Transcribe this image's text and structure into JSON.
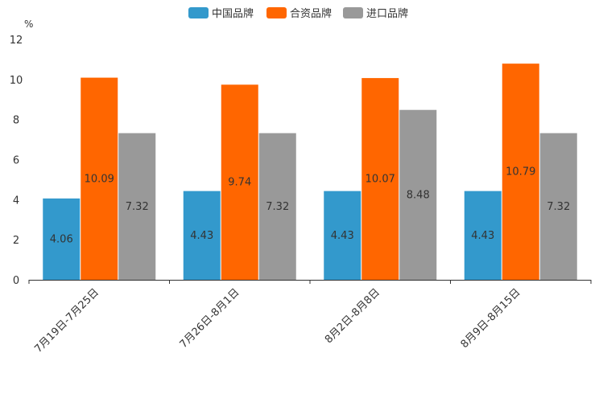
{
  "chart_data": {
    "type": "bar",
    "unit_label": "%",
    "categories": [
      "7月19日-7月25日",
      "7月26日-8月1日",
      "8月2日-8月8日",
      "8月9日-8月15日"
    ],
    "series": [
      {
        "name": "中国品牌",
        "color": "#3399cc",
        "values": [
          4.06,
          4.43,
          4.43,
          4.43
        ],
        "labels": [
          "4.06",
          "4.43",
          "4.43",
          "4.43"
        ]
      },
      {
        "name": "合资品牌",
        "color": "#ff6600",
        "values": [
          10.09,
          9.74,
          10.07,
          10.79
        ],
        "labels": [
          "10.09",
          "9.74",
          "10.07",
          "10.79"
        ]
      },
      {
        "name": "进口品牌",
        "color": "#999999",
        "values": [
          7.32,
          7.32,
          8.48,
          7.32
        ],
        "labels": [
          "7.32",
          "7.32",
          "8.48",
          "7.32"
        ]
      }
    ],
    "y_ticks": [
      "0",
      "2",
      "4",
      "6",
      "8",
      "10",
      "12"
    ],
    "ylim": [
      0,
      12
    ],
    "legend_position": "top-center",
    "grid": false
  }
}
